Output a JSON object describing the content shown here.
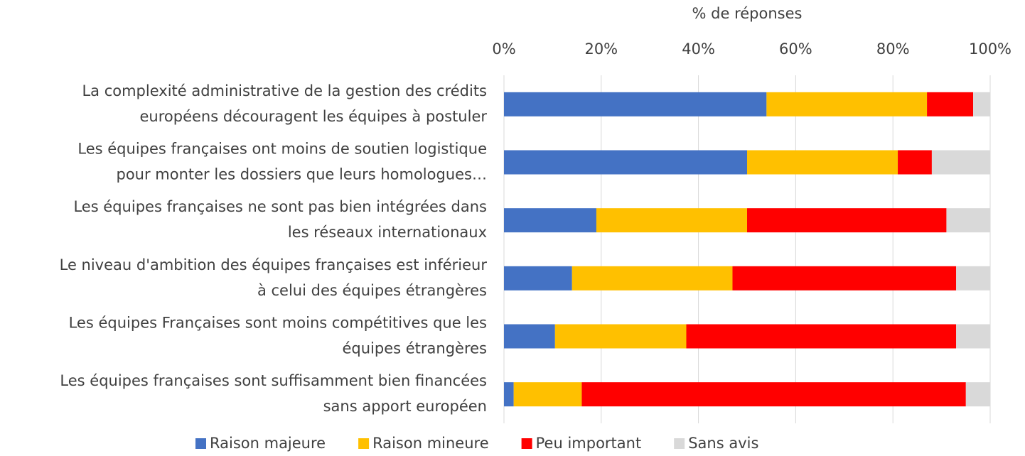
{
  "chart_data": {
    "type": "stacked_bar_horizontal",
    "x_axis_label": "% de réponses",
    "categories": [
      [
        "La complexité administrative de la gestion des crédits",
        "européens découragent les équipes à postuler"
      ],
      [
        "Les équipes françaises ont moins de soutien logistique",
        "pour monter les dossiers que leurs homologues…"
      ],
      [
        "Les équipes françaises ne sont pas bien intégrées dans",
        "les réseaux internationaux"
      ],
      [
        "Le niveau d'ambition des équipes françaises est inférieur",
        "à celui des équipes étrangères"
      ],
      [
        "Les équipes Françaises sont moins compétitives que les",
        "équipes étrangères"
      ],
      [
        "Les équipes françaises sont suffisamment bien financées",
        "sans apport européen"
      ]
    ],
    "series": [
      {
        "name": "Raison majeure",
        "color": "#4472c4",
        "values": [
          54,
          50,
          19,
          14,
          10.5,
          2
        ]
      },
      {
        "name": "Raison mineure",
        "color": "#ffc000",
        "values": [
          33,
          31,
          31,
          33,
          27,
          14
        ]
      },
      {
        "name": "Peu important",
        "color": "#ff0000",
        "values": [
          9.5,
          7,
          41,
          46,
          55.5,
          79
        ]
      },
      {
        "name": "Sans avis",
        "color": "#d9d9d9",
        "values": [
          3.5,
          12,
          9,
          7,
          7,
          5
        ]
      }
    ],
    "xlim": [
      0,
      100
    ],
    "xticks": [
      {
        "value": 0,
        "label": "0%"
      },
      {
        "value": 20,
        "label": "20%"
      },
      {
        "value": 40,
        "label": "40%"
      },
      {
        "value": 60,
        "label": "60%"
      },
      {
        "value": 80,
        "label": "80%"
      },
      {
        "value": 100,
        "label": "100%"
      }
    ],
    "grid": true,
    "legend": "bottom"
  }
}
